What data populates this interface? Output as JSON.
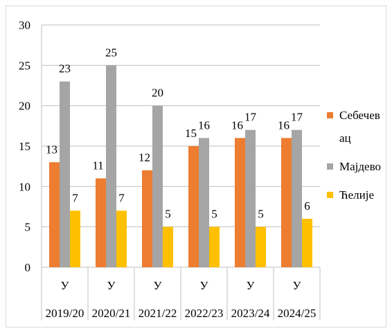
{
  "chart_data": {
    "type": "bar",
    "categories": [
      [
        "У",
        "2019/20"
      ],
      [
        "У",
        "2020/21"
      ],
      [
        "У",
        "2021/22"
      ],
      [
        "У",
        "2022/23"
      ],
      [
        "У",
        "2023/24"
      ],
      [
        "У",
        "2024/25"
      ]
    ],
    "series": [
      {
        "name": "Себечевац",
        "color": "#ed7d31",
        "values": [
          13,
          11,
          12,
          15,
          16,
          16
        ]
      },
      {
        "name": "Мајдево",
        "color": "#a5a5a5",
        "values": [
          23,
          25,
          20,
          16,
          17,
          17
        ]
      },
      {
        "name": "Ћелије",
        "color": "#ffc000",
        "values": [
          7,
          7,
          5,
          5,
          5,
          6
        ]
      }
    ],
    "ylim": [
      0,
      30
    ],
    "yticks": [
      0,
      5,
      10,
      15,
      20,
      25,
      30
    ],
    "grid": true,
    "legend": "right"
  }
}
